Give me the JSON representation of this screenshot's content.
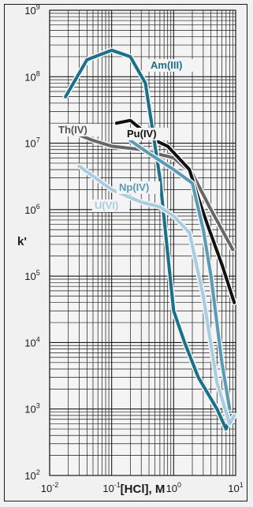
{
  "chart_data": {
    "type": "line",
    "title": "",
    "xlabel": "[HCl], M",
    "ylabel": "k'",
    "x_scale": "log",
    "y_scale": "log",
    "xlim": [
      0.01,
      10
    ],
    "ylim": [
      100,
      1000000000
    ],
    "grid": true,
    "x_ticks": [
      {
        "base": "10",
        "exp": "-2"
      },
      {
        "base": "10",
        "exp": "-1"
      },
      {
        "base": "10",
        "exp": "0"
      },
      {
        "base": "10",
        "exp": "1"
      }
    ],
    "y_ticks": [
      {
        "base": "10",
        "exp": "2"
      },
      {
        "base": "10",
        "exp": "3"
      },
      {
        "base": "10",
        "exp": "4"
      },
      {
        "base": "10",
        "exp": "5"
      },
      {
        "base": "10",
        "exp": "6"
      },
      {
        "base": "10",
        "exp": "7"
      },
      {
        "base": "10",
        "exp": "8"
      },
      {
        "base": "10",
        "exp": "9"
      }
    ],
    "series": [
      {
        "name": "Th(IV)",
        "color": "#666666",
        "label_color": "#555555",
        "x": [
          0.018,
          0.05,
          0.1,
          0.3,
          1,
          2,
          4,
          9
        ],
        "y": [
          16000000,
          11000000,
          9000000,
          8000000,
          6000000,
          3500000,
          1000000,
          250000
        ]
      },
      {
        "name": "Pu(IV)",
        "color": "#111111",
        "label_color": "#111111",
        "x": [
          0.12,
          0.2,
          0.5,
          0.8,
          1.2,
          1.8,
          2.5,
          3.5,
          6,
          9.5
        ],
        "y": [
          20000000,
          22000000,
          11000000,
          9000000,
          6000000,
          4000000,
          1500000,
          600000,
          150000,
          40000
        ]
      },
      {
        "name": "Am(III)",
        "color": "#1a7089",
        "label_color": "#1a7089",
        "x": [
          0.018,
          0.04,
          0.1,
          0.2,
          0.35,
          0.6,
          1,
          1.5,
          2.5,
          5,
          7,
          8.5
        ],
        "y": [
          50000000,
          180000000,
          250000000,
          200000000,
          80000000,
          3000000,
          30000,
          10000,
          3000,
          1000,
          500,
          800
        ]
      },
      {
        "name": "Np(IV)",
        "color": "#5a9ab5",
        "label_color": "#5a9ab5",
        "x": [
          0.2,
          0.4,
          1,
          2,
          3,
          4,
          6,
          8
        ],
        "y": [
          11000000,
          7000000,
          4000000,
          2500000,
          500000,
          100000,
          5000,
          1000
        ]
      },
      {
        "name": "U(VI)",
        "color": "#a9cde0",
        "label_color": "#a9cde0",
        "x": [
          0.03,
          0.1,
          0.3,
          0.6,
          1,
          1.8,
          3,
          5,
          8,
          9.5
        ],
        "y": [
          4500000,
          2000000,
          1300000,
          1100000,
          800000,
          450000,
          50000,
          2500,
          600,
          800
        ]
      }
    ]
  }
}
